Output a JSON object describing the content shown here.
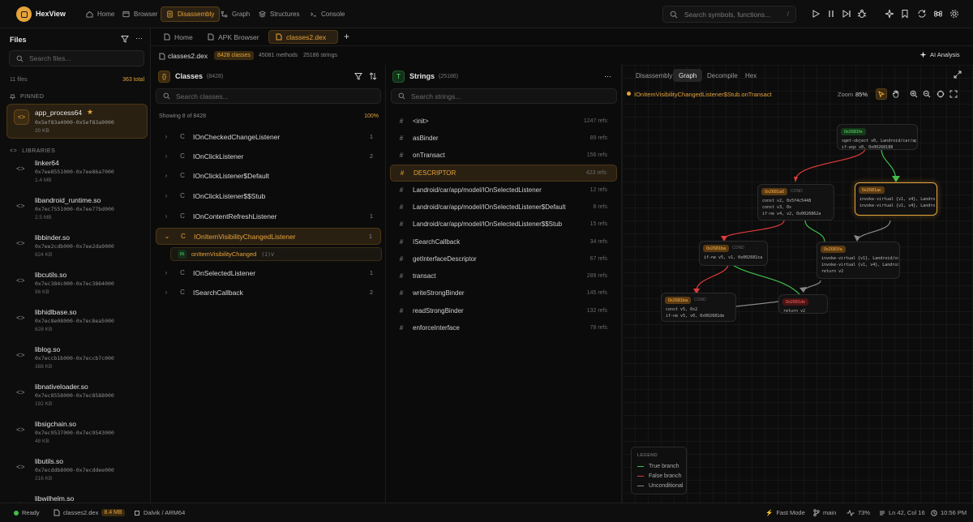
{
  "app": {
    "title": "HexView"
  },
  "nav": [
    {
      "label": "Home",
      "icon": "home-icon"
    },
    {
      "label": "Browser",
      "icon": "browser-icon"
    },
    {
      "label": "Disassembly",
      "icon": "disassembly-icon",
      "active": true
    },
    {
      "label": "Graph",
      "icon": "graph-icon"
    },
    {
      "label": "Structures",
      "icon": "structures-icon"
    },
    {
      "label": "Console",
      "icon": "console-icon"
    }
  ],
  "topsearch": {
    "placeholder": "Search symbols, functions...",
    "shortcut": "/"
  },
  "sidebar": {
    "title": "Files",
    "search_placeholder": "Search files...",
    "file_count": "11 files",
    "total": "363 total",
    "pinned_label": "PINNED",
    "libraries_label": "LIBRARIES",
    "pinned": {
      "name": "app_process64",
      "addr": "0x5ef83a4000-0x5ef83a9000",
      "size": "20 KB"
    },
    "libraries": [
      {
        "name": "linker64",
        "addr": "0x7ee8551000-0x7ee86a7000",
        "size": "1.4 MB"
      },
      {
        "name": "libandroid_runtime.so",
        "addr": "0x7ec7551000-0x7ee77bd000",
        "size": "2.5 MB"
      },
      {
        "name": "libbinder.so",
        "addr": "0x7ee2cdb000-0x7ee2da9000",
        "size": "824 KB"
      },
      {
        "name": "libcutils.so",
        "addr": "0x7ec384c000-0x7ec3864000",
        "size": "96 KB"
      },
      {
        "name": "libhidlbase.so",
        "addr": "0x7ec8e08000-0x7ec8ea5000",
        "size": "628 KB"
      },
      {
        "name": "liblog.so",
        "addr": "0x7eccb1b000-0x7eccb7c000",
        "size": "388 KB"
      },
      {
        "name": "libnativeloader.so",
        "addr": "0x7ec8558000-0x7ec8588000",
        "size": "192 KB"
      },
      {
        "name": "libsigchain.so",
        "addr": "0x7ec9537000-0x7ec9543000",
        "size": "48 KB"
      },
      {
        "name": "libutils.so",
        "addr": "0x7ecddb8000-0x7ecddee000",
        "size": "216 KB"
      },
      {
        "name": "libwilhelm.so",
        "addr": "",
        "size": ""
      }
    ]
  },
  "filetabs": [
    {
      "label": "Home"
    },
    {
      "label": "APK Browser"
    },
    {
      "label": "classes2.dex",
      "active": true
    }
  ],
  "info": {
    "file": "classes2.dex",
    "classes": "8428 classes",
    "methods": "45081 methods",
    "strings": "25186 strings",
    "ai": "AI Analysis"
  },
  "classes": {
    "title": "Classes",
    "count": "(8428)",
    "search_placeholder": "Search classes...",
    "showing": "Showing 8 of 8428",
    "percent": "100%",
    "rows": [
      {
        "name": "IOnCheckedChangeListener",
        "count": "1"
      },
      {
        "name": "IOnClickListener",
        "count": "2"
      },
      {
        "name": "IOnClickListener$Default",
        "count": ""
      },
      {
        "name": "IOnClickListener$$Stub",
        "count": ""
      },
      {
        "name": "IOnContentRefreshListener",
        "count": "1"
      },
      {
        "name": "IOnItemVisibilityChangedListener",
        "count": "1",
        "selected": true
      },
      {
        "name": "IOnSelectedListener",
        "count": "1"
      },
      {
        "name": "ISearchCallback",
        "count": "2"
      }
    ],
    "method": {
      "badge": "m",
      "name": "onItemVisibilityChanged",
      "sig": "(I)V"
    }
  },
  "strings": {
    "title": "Strings",
    "count": "(25186)",
    "search_placeholder": "Search strings...",
    "rows": [
      {
        "value": "<init>",
        "refs": "1247 refs"
      },
      {
        "value": "asBinder",
        "refs": "89 refs"
      },
      {
        "value": "onTransact",
        "refs": "156 refs"
      },
      {
        "value": "DESCRIPTOR",
        "refs": "423 refs",
        "selected": true
      },
      {
        "value": "Landroid/car/app/model/IOnSelectedListener",
        "refs": "12 refs"
      },
      {
        "value": "Landroid/car/app/model/IOnSelectedListener$Default",
        "refs": "8 refs"
      },
      {
        "value": "Landroid/car/app/model/IOnSelectedListener$$Stub",
        "refs": "15 refs"
      },
      {
        "value": "ISearchCallback",
        "refs": "34 refs"
      },
      {
        "value": "getInterfaceDescriptor",
        "refs": "67 refs"
      },
      {
        "value": "transact",
        "refs": "289 refs"
      },
      {
        "value": "writeStrongBinder",
        "refs": "145 refs"
      },
      {
        "value": "readStrongBinder",
        "refs": "132 refs"
      },
      {
        "value": "enforceInterface",
        "refs": "78 refs"
      }
    ]
  },
  "graph": {
    "tabs": [
      {
        "label": "Disassembly"
      },
      {
        "label": "Graph",
        "active": true
      },
      {
        "label": "Decompile"
      },
      {
        "label": "Hex"
      }
    ],
    "function": "IOnItemVisibilityChangedListener$Stub.onTransact",
    "zoom_label": "Zoom",
    "zoom": "85%",
    "nodes": [
      {
        "id": "0x2681fe",
        "badge": "green",
        "cond": "",
        "lines": [
          "sget-object v0, Landroid/car/app/mode...",
          "if-eqz v0, 0x00268188"
        ]
      },
      {
        "id": "0x2681a0",
        "badge": "orange",
        "cond": "COND",
        "lines": [
          "const v2, 0x5f4c5448",
          "const v3, 0x",
          "if-ne v4, v2, 0x0026862a"
        ]
      },
      {
        "id": "0x2681ac",
        "badge": "orange",
        "cond": "",
        "lines": [
          "invoke-virtual {v1, v4}, Landroid/os/Parce...",
          "invoke-virtual {v1, v4}, Landroid/car/app/..."
        ]
      },
      {
        "id": "0x2681ba",
        "badge": "orange",
        "cond": "COND",
        "lines": [
          "if-ne v5, v1, 0x002681ca"
        ]
      },
      {
        "id": "0x2681fa",
        "badge": "orange",
        "cond": "",
        "lines": [
          "invoke-virtual {v1}, Landroid/os/Parcel;->...",
          "invoke-virtual {v1, v4}, Landroid/os/Parcel...",
          "return v2"
        ]
      },
      {
        "id": "0x2681ba",
        "badge": "orange",
        "cond": "COND",
        "lines": [
          "const v5, 0x2",
          "if-ne v5, v0, 0x002681de"
        ]
      },
      {
        "id": "0x2681de",
        "badge": "red",
        "cond": "",
        "lines": [
          "return v2"
        ]
      }
    ],
    "legend": {
      "title": "LEGEND",
      "items": [
        {
          "label": "True branch",
          "color": "#3fbf4a"
        },
        {
          "label": "False branch",
          "color": "#e03a3a"
        },
        {
          "label": "Unconditional",
          "color": "#888888"
        }
      ]
    }
  },
  "status": {
    "ready": "Ready",
    "file": "classes2.dex",
    "size": "8.4 MB",
    "arch": "Dalvik / ARM64",
    "mode": "Fast Mode",
    "branch": "main",
    "cpu": "73%",
    "position": "Ln 42, Col 16",
    "time": "10:56 PM"
  },
  "colors": {
    "accent": "#e6a33a",
    "true_branch": "#3fbf4a",
    "false_branch": "#e03a3a",
    "unconditional": "#888888"
  }
}
